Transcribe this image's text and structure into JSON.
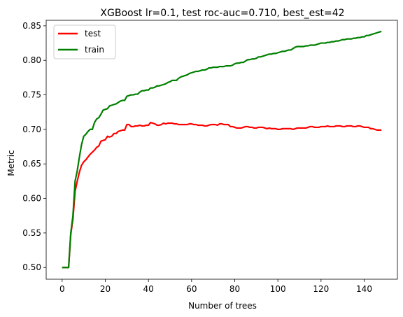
{
  "chart_data": {
    "type": "line",
    "title": "XGBoost lr=0.1, test roc-auc=0.710, best_est=42",
    "xlabel": "Number of trees",
    "ylabel": "Metric",
    "xlim": [
      -7.4,
      155.4
    ],
    "ylim": [
      0.483,
      0.858
    ],
    "xticks": [
      0,
      20,
      40,
      60,
      80,
      100,
      120,
      140
    ],
    "yticks": [
      0.5,
      0.55,
      0.6,
      0.65,
      0.7,
      0.75,
      0.8,
      0.85
    ],
    "ytick_labels": [
      "0.50",
      "0.55",
      "0.60",
      "0.65",
      "0.70",
      "0.75",
      "0.80",
      "0.85"
    ],
    "grid": false,
    "legend_position": "top-left",
    "series": [
      {
        "name": "test",
        "color": "#ff0000",
        "x": [
          0,
          1,
          2,
          3,
          4,
          5,
          6,
          7,
          8,
          9,
          10,
          11,
          12,
          13,
          14,
          15,
          16,
          17,
          18,
          19,
          20,
          21,
          22,
          23,
          24,
          25,
          26,
          27,
          28,
          29,
          30,
          31,
          32,
          33,
          34,
          35,
          36,
          37,
          38,
          39,
          40,
          41,
          42,
          43,
          44,
          45,
          46,
          47,
          48,
          49,
          50,
          51,
          52,
          53,
          54,
          55,
          56,
          57,
          58,
          59,
          60,
          61,
          62,
          63,
          64,
          65,
          66,
          67,
          68,
          69,
          70,
          71,
          72,
          73,
          74,
          75,
          76,
          77,
          78,
          79,
          80,
          81,
          82,
          83,
          84,
          85,
          86,
          87,
          88,
          89,
          90,
          91,
          92,
          93,
          94,
          95,
          96,
          97,
          98,
          99,
          100,
          101,
          102,
          103,
          104,
          105,
          106,
          107,
          108,
          109,
          110,
          111,
          112,
          113,
          114,
          115,
          116,
          117,
          118,
          119,
          120,
          121,
          122,
          123,
          124,
          125,
          126,
          127,
          128,
          129,
          130,
          131,
          132,
          133,
          134,
          135,
          136,
          137,
          138,
          139,
          140,
          141,
          142,
          143,
          144,
          145,
          146,
          147,
          148
        ],
        "values": [
          0.5,
          0.5,
          0.5,
          0.5,
          0.548,
          0.57,
          0.61,
          0.625,
          0.638,
          0.648,
          0.653,
          0.656,
          0.66,
          0.664,
          0.667,
          0.67,
          0.674,
          0.676,
          0.683,
          0.684,
          0.685,
          0.69,
          0.689,
          0.69,
          0.694,
          0.694,
          0.697,
          0.698,
          0.699,
          0.699,
          0.707,
          0.707,
          0.704,
          0.704,
          0.705,
          0.705,
          0.706,
          0.705,
          0.705,
          0.706,
          0.706,
          0.71,
          0.709,
          0.708,
          0.706,
          0.706,
          0.707,
          0.709,
          0.708,
          0.709,
          0.709,
          0.709,
          0.708,
          0.708,
          0.707,
          0.707,
          0.707,
          0.707,
          0.707,
          0.708,
          0.708,
          0.707,
          0.707,
          0.706,
          0.706,
          0.706,
          0.705,
          0.705,
          0.706,
          0.707,
          0.707,
          0.707,
          0.706,
          0.708,
          0.708,
          0.707,
          0.707,
          0.707,
          0.704,
          0.704,
          0.703,
          0.702,
          0.702,
          0.702,
          0.703,
          0.704,
          0.704,
          0.703,
          0.703,
          0.702,
          0.702,
          0.703,
          0.703,
          0.703,
          0.702,
          0.701,
          0.702,
          0.701,
          0.701,
          0.701,
          0.7,
          0.7,
          0.701,
          0.701,
          0.701,
          0.701,
          0.701,
          0.7,
          0.701,
          0.702,
          0.702,
          0.702,
          0.702,
          0.702,
          0.703,
          0.704,
          0.704,
          0.703,
          0.703,
          0.703,
          0.704,
          0.704,
          0.704,
          0.705,
          0.704,
          0.704,
          0.704,
          0.705,
          0.705,
          0.705,
          0.704,
          0.704,
          0.705,
          0.705,
          0.705,
          0.704,
          0.704,
          0.705,
          0.705,
          0.704,
          0.703,
          0.703,
          0.703,
          0.701,
          0.701,
          0.7,
          0.699,
          0.699,
          0.699
        ]
      },
      {
        "name": "train",
        "color": "#008000",
        "x": [
          0,
          1,
          2,
          3,
          4,
          5,
          6,
          7,
          8,
          9,
          10,
          11,
          12,
          13,
          14,
          15,
          16,
          17,
          18,
          19,
          20,
          21,
          22,
          23,
          24,
          25,
          26,
          27,
          28,
          29,
          30,
          31,
          32,
          33,
          34,
          35,
          36,
          37,
          38,
          39,
          40,
          41,
          42,
          43,
          44,
          45,
          46,
          47,
          48,
          49,
          50,
          51,
          52,
          53,
          54,
          55,
          56,
          57,
          58,
          59,
          60,
          61,
          62,
          63,
          64,
          65,
          66,
          67,
          68,
          69,
          70,
          71,
          72,
          73,
          74,
          75,
          76,
          77,
          78,
          79,
          80,
          81,
          82,
          83,
          84,
          85,
          86,
          87,
          88,
          89,
          90,
          91,
          92,
          93,
          94,
          95,
          96,
          97,
          98,
          99,
          100,
          101,
          102,
          103,
          104,
          105,
          106,
          107,
          108,
          109,
          110,
          111,
          112,
          113,
          114,
          115,
          116,
          117,
          118,
          119,
          120,
          121,
          122,
          123,
          124,
          125,
          126,
          127,
          128,
          129,
          130,
          131,
          132,
          133,
          134,
          135,
          136,
          137,
          138,
          139,
          140,
          141,
          142,
          143,
          144,
          145,
          146,
          147,
          148
        ],
        "values": [
          0.5,
          0.5,
          0.5,
          0.5,
          0.55,
          0.575,
          0.625,
          0.64,
          0.66,
          0.678,
          0.69,
          0.693,
          0.697,
          0.7,
          0.7,
          0.71,
          0.715,
          0.717,
          0.722,
          0.728,
          0.729,
          0.73,
          0.734,
          0.735,
          0.736,
          0.737,
          0.739,
          0.741,
          0.742,
          0.742,
          0.748,
          0.749,
          0.75,
          0.75,
          0.751,
          0.751,
          0.754,
          0.756,
          0.756,
          0.757,
          0.757,
          0.76,
          0.76,
          0.761,
          0.763,
          0.763,
          0.764,
          0.765,
          0.766,
          0.768,
          0.769,
          0.771,
          0.771,
          0.771,
          0.774,
          0.776,
          0.777,
          0.778,
          0.779,
          0.781,
          0.782,
          0.783,
          0.784,
          0.784,
          0.785,
          0.786,
          0.786,
          0.787,
          0.789,
          0.789,
          0.79,
          0.79,
          0.79,
          0.791,
          0.791,
          0.791,
          0.792,
          0.792,
          0.792,
          0.793,
          0.795,
          0.796,
          0.796,
          0.797,
          0.797,
          0.799,
          0.801,
          0.801,
          0.802,
          0.802,
          0.803,
          0.805,
          0.805,
          0.806,
          0.807,
          0.808,
          0.809,
          0.809,
          0.81,
          0.81,
          0.811,
          0.812,
          0.813,
          0.813,
          0.814,
          0.815,
          0.815,
          0.817,
          0.819,
          0.82,
          0.82,
          0.82,
          0.82,
          0.821,
          0.821,
          0.822,
          0.822,
          0.822,
          0.823,
          0.824,
          0.825,
          0.825,
          0.825,
          0.826,
          0.826,
          0.827,
          0.827,
          0.828,
          0.828,
          0.829,
          0.83,
          0.83,
          0.831,
          0.831,
          0.831,
          0.832,
          0.832,
          0.833,
          0.833,
          0.834,
          0.834,
          0.836,
          0.836,
          0.837,
          0.838,
          0.839,
          0.84,
          0.841,
          0.842
        ]
      }
    ]
  }
}
